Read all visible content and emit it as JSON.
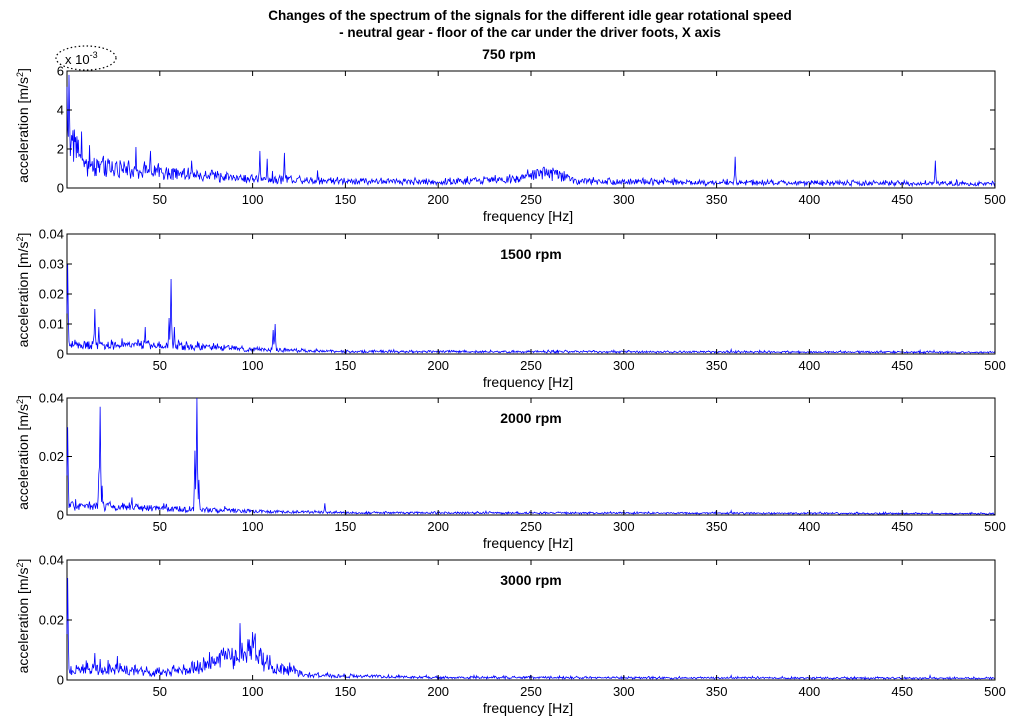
{
  "figure": {
    "title_line1": "Changes of the spectrum of the signals for the different idle gear rotational speed",
    "title_line2": "- neutral gear - floor of the car under the driver foots, X axis"
  },
  "chart_data": [
    {
      "type": "line",
      "title": "750 rpm",
      "xlabel": "frequency [Hz]",
      "ylabel": "acceleration [m/s²]",
      "y_multiplier": "x 10",
      "y_multiplier_exp": "-3",
      "xlim": [
        0,
        500
      ],
      "ylim": [
        0,
        6
      ],
      "xticks": [
        50,
        100,
        150,
        200,
        250,
        300,
        350,
        400,
        450,
        500
      ],
      "yticks": [
        0,
        2,
        4,
        6
      ],
      "ytick_labels": [
        "0",
        "2",
        "4",
        "6"
      ],
      "series_color": "#0000ff",
      "baseline": [
        [
          0,
          4.5
        ],
        [
          2,
          2.5
        ],
        [
          10,
          1.2
        ],
        [
          30,
          1.0
        ],
        [
          60,
          0.7
        ],
        [
          100,
          0.45
        ],
        [
          150,
          0.35
        ],
        [
          200,
          0.3
        ],
        [
          240,
          0.45
        ],
        [
          258,
          0.85
        ],
        [
          275,
          0.35
        ],
        [
          350,
          0.25
        ],
        [
          500,
          0.2
        ]
      ],
      "noise": 0.55,
      "peaks": [
        [
          1,
          5.8
        ],
        [
          4,
          3.0
        ],
        [
          8,
          2.9
        ],
        [
          12,
          2.2
        ],
        [
          37,
          2.1
        ],
        [
          45,
          1.9
        ],
        [
          67,
          1.4
        ],
        [
          104,
          1.9
        ],
        [
          108,
          1.5
        ],
        [
          117,
          1.8
        ],
        [
          135,
          0.9
        ],
        [
          360,
          1.6
        ],
        [
          468,
          1.4
        ]
      ]
    },
    {
      "type": "line",
      "title": "1500 rpm",
      "xlabel": "frequency [Hz]",
      "ylabel": "acceleration [m/s²]",
      "xlim": [
        0,
        500
      ],
      "ylim": [
        0,
        0.04
      ],
      "xticks": [
        50,
        100,
        150,
        200,
        250,
        300,
        350,
        400,
        450,
        500
      ],
      "yticks": [
        0,
        0.01,
        0.02,
        0.03,
        0.04
      ],
      "ytick_labels": [
        "0",
        "0.01",
        "0.02",
        "0.03",
        "0.04"
      ],
      "series_color": "#0000ff",
      "baseline": [
        [
          0,
          0.003
        ],
        [
          5,
          0.003
        ],
        [
          60,
          0.0025
        ],
        [
          100,
          0.0015
        ],
        [
          150,
          0.0008
        ],
        [
          500,
          0.0005
        ]
      ],
      "noise": 0.0015,
      "peaks": [
        [
          0.5,
          0.03
        ],
        [
          15,
          0.015
        ],
        [
          17,
          0.009
        ],
        [
          42,
          0.009
        ],
        [
          55,
          0.012
        ],
        [
          56,
          0.025
        ],
        [
          58,
          0.009
        ],
        [
          111,
          0.008
        ],
        [
          112,
          0.01
        ],
        [
          358,
          0.0015
        ],
        [
          467,
          0.0012
        ]
      ]
    },
    {
      "type": "line",
      "title": "2000 rpm",
      "xlabel": "frequency [Hz]",
      "ylabel": "acceleration [m/s²]",
      "xlim": [
        0,
        500
      ],
      "ylim": [
        0,
        0.04
      ],
      "xticks": [
        50,
        100,
        150,
        200,
        250,
        300,
        350,
        400,
        450,
        500
      ],
      "yticks": [
        0,
        0.02,
        0.04
      ],
      "ytick_labels": [
        "0",
        "0.02",
        "0.04"
      ],
      "series_color": "#0000ff",
      "baseline": [
        [
          0,
          0.003
        ],
        [
          10,
          0.003
        ],
        [
          60,
          0.002
        ],
        [
          100,
          0.0012
        ],
        [
          150,
          0.0008
        ],
        [
          500,
          0.0004
        ]
      ],
      "noise": 0.0012,
      "peaks": [
        [
          0.5,
          0.03
        ],
        [
          17,
          0.014
        ],
        [
          18,
          0.037
        ],
        [
          19,
          0.01
        ],
        [
          35,
          0.006
        ],
        [
          52,
          0.004
        ],
        [
          69,
          0.022
        ],
        [
          70,
          0.04
        ],
        [
          71,
          0.012
        ],
        [
          85,
          0.003
        ],
        [
          139,
          0.004
        ],
        [
          358,
          0.0015
        ],
        [
          466,
          0.0012
        ]
      ]
    },
    {
      "type": "line",
      "title": "3000 rpm",
      "xlabel": "frequency [Hz]",
      "ylabel": "acceleration [m/s²]",
      "xlim": [
        0,
        500
      ],
      "ylim": [
        0,
        0.04
      ],
      "xticks": [
        50,
        100,
        150,
        200,
        250,
        300,
        350,
        400,
        450,
        500
      ],
      "yticks": [
        0,
        0.02,
        0.04
      ],
      "ytick_labels": [
        "0",
        "0.02",
        "0.04"
      ],
      "series_color": "#0000ff",
      "baseline": [
        [
          0,
          0.002
        ],
        [
          10,
          0.003
        ],
        [
          30,
          0.003
        ],
        [
          50,
          0.002
        ],
        [
          75,
          0.004
        ],
        [
          85,
          0.008
        ],
        [
          90,
          0.007
        ],
        [
          100,
          0.01
        ],
        [
          108,
          0.004
        ],
        [
          130,
          0.0015
        ],
        [
          200,
          0.0008
        ],
        [
          500,
          0.0005
        ]
      ],
      "noise": 0.0015,
      "peaks": [
        [
          0.5,
          0.034
        ],
        [
          5,
          0.005
        ],
        [
          15,
          0.009
        ],
        [
          18,
          0.007
        ],
        [
          27,
          0.008
        ],
        [
          84,
          0.008
        ],
        [
          100,
          0.016
        ],
        [
          101,
          0.014
        ],
        [
          358,
          0.0015
        ],
        [
          465,
          0.0015
        ]
      ]
    }
  ]
}
